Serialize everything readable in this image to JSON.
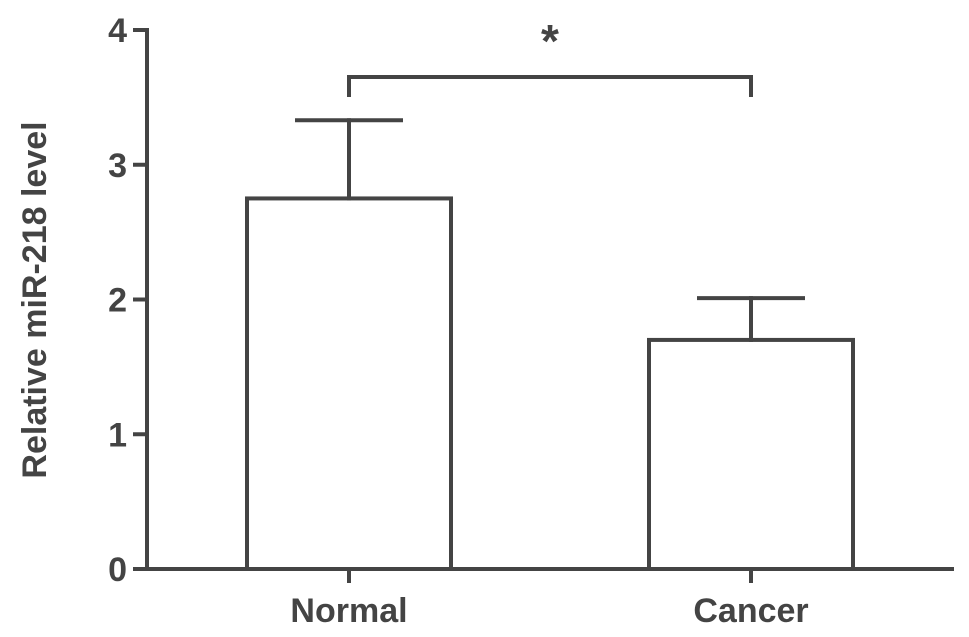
{
  "chart_data": {
    "type": "bar",
    "categories": [
      "Normal",
      "Cancer"
    ],
    "values": [
      2.75,
      1.7
    ],
    "errors": [
      0.58,
      0.31
    ],
    "ylabel": "Relative miR-218 level",
    "xlabel": "",
    "title": "",
    "ylim": [
      0,
      4
    ],
    "yticks": [
      0,
      1,
      2,
      3,
      4
    ],
    "significance": {
      "between": [
        "Normal",
        "Cancer"
      ],
      "label": "*"
    },
    "grid": false,
    "legend": "none"
  }
}
